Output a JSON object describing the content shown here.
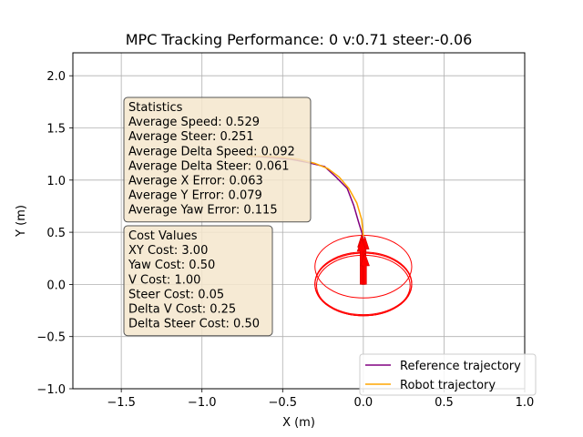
{
  "chart_data": {
    "type": "line",
    "title": "MPC Tracking Performance: 0 v:0.71 steer:-0.06",
    "xlabel": "X (m)",
    "ylabel": "Y (m)",
    "xlim": [
      -1.8,
      1.0
    ],
    "ylim": [
      -1.0,
      2.22
    ],
    "xticks": [
      -1.5,
      -1.0,
      -0.5,
      0.0,
      0.5,
      1.0
    ],
    "xtick_labels": [
      "−1.5",
      "−1.0",
      "−0.5",
      "0.0",
      "0.5",
      "1.0"
    ],
    "yticks": [
      -1.0,
      -0.5,
      0.0,
      0.5,
      1.0,
      1.5,
      2.0
    ],
    "ytick_labels": [
      "−1.0",
      "−0.5",
      "0.0",
      "0.5",
      "1.0",
      "1.5",
      "2.0"
    ],
    "grid": true,
    "legend_position": "bottom-right",
    "series": [
      {
        "name": "Reference trajectory",
        "color": "#800080",
        "x": [
          -0.72,
          -0.6,
          -0.45,
          -0.35,
          -0.24,
          -0.17,
          -0.1,
          -0.06,
          -0.03,
          -0.01,
          0.0
        ],
        "y": [
          1.23,
          1.22,
          1.2,
          1.17,
          1.13,
          1.03,
          0.92,
          0.76,
          0.6,
          0.5,
          0.45
        ]
      },
      {
        "name": "Robot trajectory",
        "color": "#ffa500",
        "x": [
          -0.72,
          -0.6,
          -0.5,
          -0.4,
          -0.3,
          -0.22,
          -0.15,
          -0.09,
          -0.04,
          -0.01,
          0.0
        ],
        "y": [
          1.23,
          1.23,
          1.22,
          1.2,
          1.16,
          1.11,
          1.03,
          0.92,
          0.78,
          0.62,
          0.46
        ]
      }
    ],
    "robot_circles": [
      {
        "cx": 0.0,
        "cy": 0.0,
        "r": 0.3,
        "color": "#ff0000"
      },
      {
        "cx": 0.0,
        "cy": 0.0,
        "r": 0.3,
        "color": "#ff0000"
      },
      {
        "cx": 0.0,
        "cy": -0.01,
        "r": 0.29,
        "color": "#ff0000"
      },
      {
        "cx": 0.0,
        "cy": 0.01,
        "r": 0.3,
        "color": "#ff0000"
      },
      {
        "cx": 0.0,
        "cy": 0.17,
        "r": 0.3,
        "color": "#ff0000"
      }
    ],
    "robot_arrows": [
      {
        "x": 0.0,
        "y": 0.0,
        "dx": -0.01,
        "dy": 0.48,
        "color": "#ff0000"
      },
      {
        "x": 0.0,
        "y": 0.0,
        "dx": 0.01,
        "dy": 0.46,
        "color": "#ff0000"
      },
      {
        "x": -0.01,
        "y": 0.0,
        "dx": 0.0,
        "dy": 0.44,
        "color": "#ff0000"
      },
      {
        "x": 0.01,
        "y": 0.0,
        "dx": 0.0,
        "dy": 0.3,
        "color": "#ff0000"
      }
    ],
    "statistics_box": {
      "lines": [
        "Statistics",
        "Average Speed: 0.529",
        "Average Steer: 0.251",
        "Average Delta Speed: 0.092",
        "Average Delta Steer: 0.061",
        "Average X Error: 0.063",
        "Average Y Error: 0.079",
        "Average Yaw Error: 0.115"
      ],
      "background": "#f5e6cc"
    },
    "cost_box": {
      "lines": [
        "Cost Values",
        "XY Cost: 3.00",
        "Yaw Cost: 0.50",
        "V Cost: 1.00",
        "Steer Cost: 0.05",
        "Delta V Cost: 0.25",
        "Delta Steer Cost: 0.50"
      ],
      "background": "#f5e6cc"
    }
  }
}
